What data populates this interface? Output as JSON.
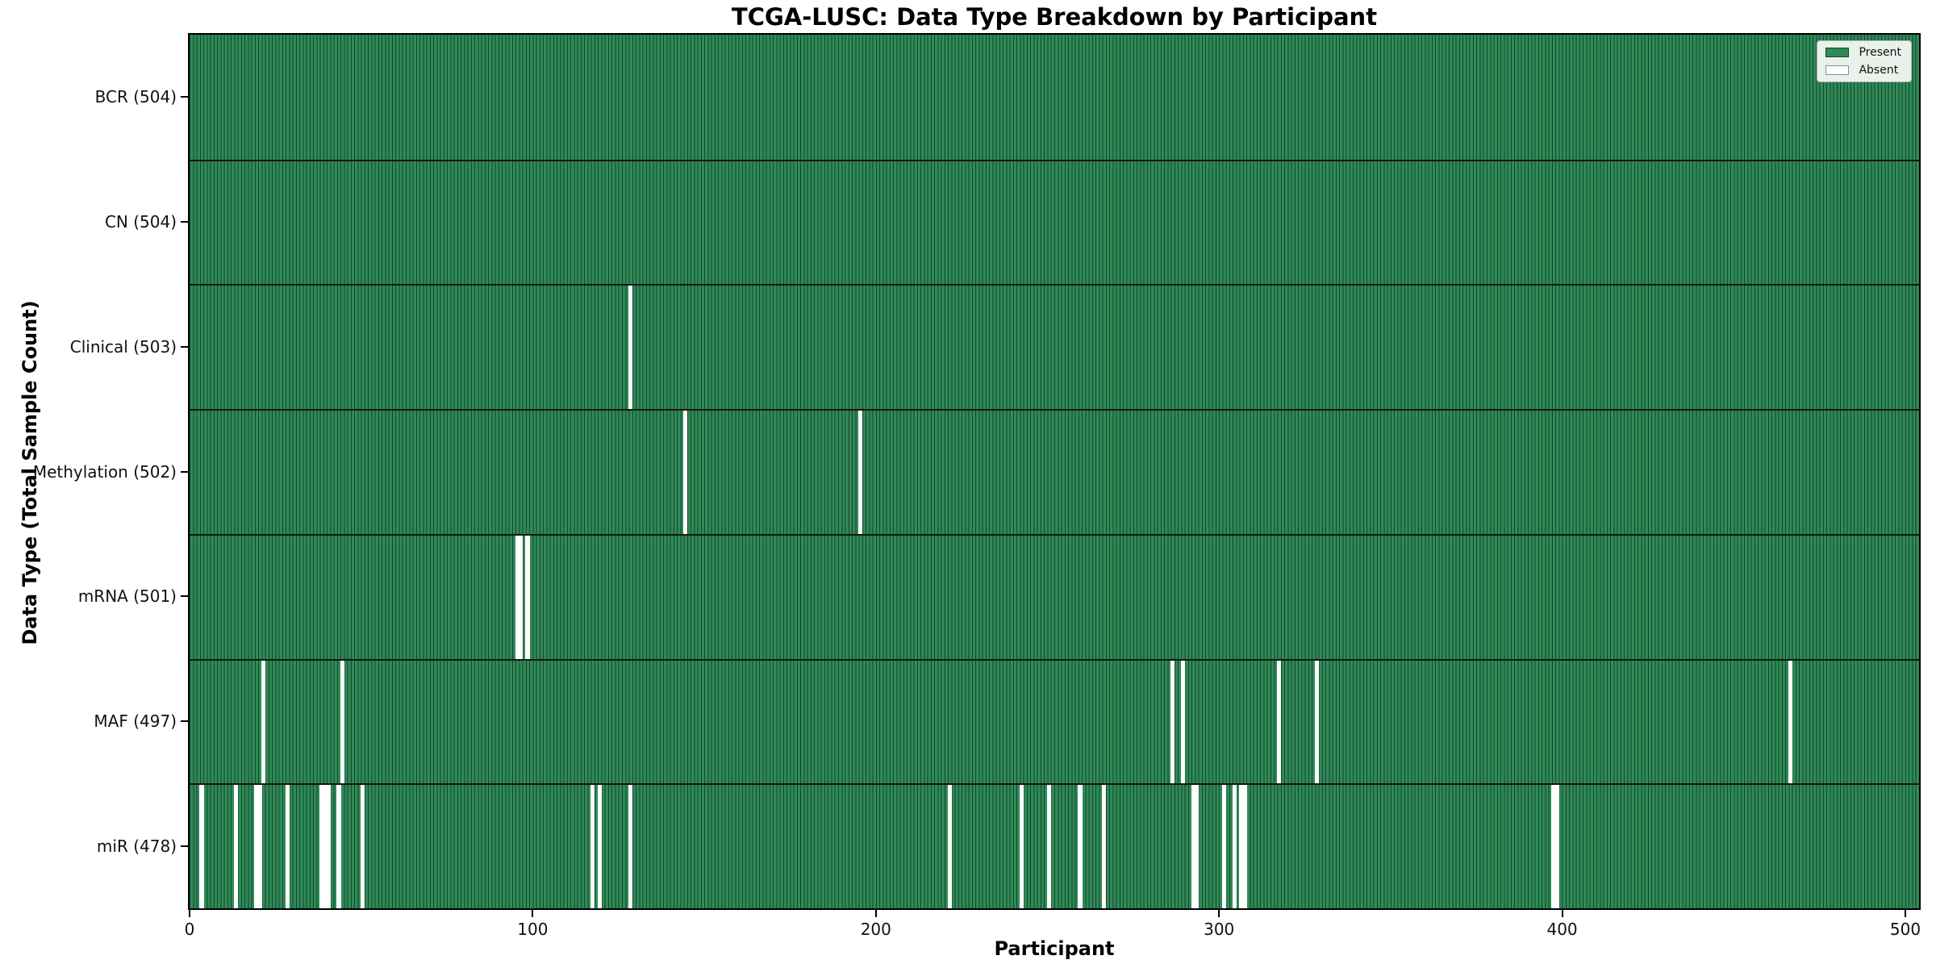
{
  "figure": {
    "title": "TCGA-LUSC: Data Type Breakdown by Participant",
    "xlabel": "Participant",
    "ylabel": "Data Type (Total Sample Count)"
  },
  "legend": {
    "present_label": "Present",
    "absent_label": "Absent"
  },
  "colors": {
    "present": "#2e8b57",
    "absent": "#ffffff",
    "bar_edge": "#17432b",
    "separator": "#151515",
    "axis": "#000000",
    "legend_bg": "#fbfbf9",
    "legend_border": "#b4b4b4"
  },
  "chart_data": {
    "type": "heatmap",
    "title": "TCGA-LUSC: Data Type Breakdown by Participant",
    "xlabel": "Participant",
    "ylabel": "Data Type (Total Sample Count)",
    "x_ticks": [
      0,
      100,
      200,
      300,
      400,
      500
    ],
    "xlim": [
      0,
      504
    ],
    "n_participants": 504,
    "grid": false,
    "legend_position": "upper right",
    "legend": [
      {
        "label": "Present",
        "color": "#2e8b57"
      },
      {
        "label": "Absent",
        "color": "#ffffff"
      }
    ],
    "rows": [
      {
        "name": "BCR",
        "count": 504,
        "absent": []
      },
      {
        "name": "CN",
        "count": 504,
        "absent": []
      },
      {
        "name": "Clinical",
        "count": 503,
        "absent": [
          128
        ]
      },
      {
        "name": "Methylation",
        "count": 502,
        "absent": [
          144,
          195
        ]
      },
      {
        "name": "mRNA",
        "count": 501,
        "absent": [
          95,
          96,
          98
        ]
      },
      {
        "name": "MAF",
        "count": 497,
        "absent": [
          21,
          44,
          286,
          289,
          317,
          328,
          466
        ]
      },
      {
        "name": "miR",
        "count": 478,
        "absent": [
          3,
          13,
          19,
          20,
          28,
          38,
          39,
          40,
          43,
          50,
          117,
          119,
          128,
          221,
          242,
          250,
          259,
          266,
          292,
          293,
          301,
          304,
          306,
          307,
          397,
          398
        ]
      }
    ]
  }
}
